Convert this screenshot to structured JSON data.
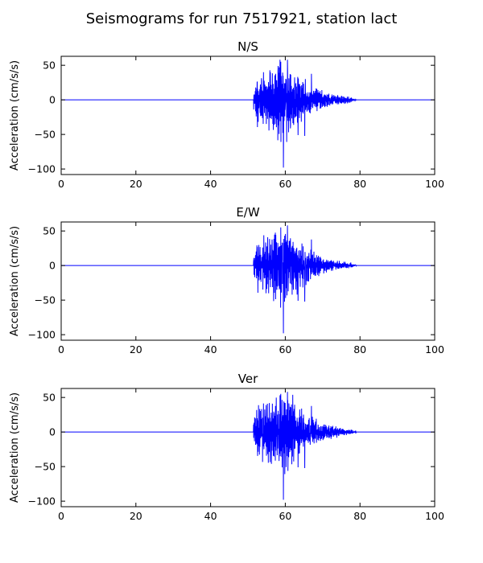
{
  "figure": {
    "title": "Seismograms for run 7517921, station lact"
  },
  "chart_data": [
    {
      "type": "line",
      "title": "N/S",
      "xlabel": "",
      "ylabel": "Acceleration (cm/s/s)",
      "xlim": [
        0,
        100
      ],
      "ylim": [
        -108,
        63
      ],
      "xticks": [
        0,
        20,
        40,
        60,
        80,
        100
      ],
      "yticks": [
        50,
        0,
        -50,
        -100
      ],
      "grid": false,
      "color": "#0000ff",
      "signal": {
        "onset": 51.5,
        "peak_time": 60,
        "end": 78,
        "max": 58,
        "min": -98,
        "min_time": 59.5
      }
    },
    {
      "type": "line",
      "title": "E/W",
      "xlabel": "",
      "ylabel": "Acceleration (cm/s/s)",
      "xlim": [
        0,
        100
      ],
      "ylim": [
        -108,
        63
      ],
      "xticks": [
        0,
        20,
        40,
        60,
        80,
        100
      ],
      "yticks": [
        50,
        0,
        -50,
        -100
      ],
      "grid": false,
      "color": "#0000ff",
      "signal": {
        "onset": 51.5,
        "peak_time": 60,
        "end": 78,
        "max": 58,
        "min": -98,
        "min_time": 59.5
      }
    },
    {
      "type": "line",
      "title": "Ver",
      "xlabel": "",
      "ylabel": "Acceleration (cm/s/s)",
      "xlim": [
        0,
        100
      ],
      "ylim": [
        -108,
        63
      ],
      "xticks": [
        0,
        20,
        40,
        60,
        80,
        100
      ],
      "yticks": [
        50,
        0,
        -50,
        -100
      ],
      "grid": false,
      "color": "#0000ff",
      "signal": {
        "onset": 51.5,
        "peak_time": 60,
        "end": 78,
        "max": 58,
        "min": -98,
        "min_time": 59.5
      }
    }
  ]
}
